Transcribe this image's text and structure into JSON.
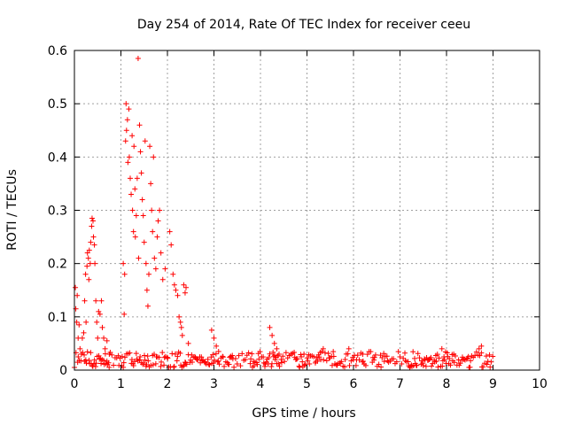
{
  "chart_data": {
    "type": "scatter",
    "title": "Day 254 of 2014, Rate Of TEC Index for receiver ceeu",
    "xlabel": "GPS time / hours",
    "ylabel": "ROTI / TECUs",
    "xlim": [
      0,
      10
    ],
    "ylim": [
      0,
      0.6
    ],
    "xticks": [
      "0",
      "1",
      "2",
      "3",
      "4",
      "5",
      "6",
      "7",
      "8",
      "9",
      "10"
    ],
    "yticks": [
      "0",
      "0.1",
      "0.2",
      "0.3",
      "0.4",
      "0.5",
      "0.6"
    ],
    "grid": true,
    "marker": "+",
    "color": "#ff0000",
    "points": [
      [
        0.02,
        0.155
      ],
      [
        0.03,
        0.115
      ],
      [
        0.05,
        0.09
      ],
      [
        0.06,
        0.14
      ],
      [
        0.08,
        0.06
      ],
      [
        0.1,
        0.085
      ],
      [
        0.12,
        0.04
      ],
      [
        0.15,
        0.03
      ],
      [
        0.17,
        0.06
      ],
      [
        0.2,
        0.07
      ],
      [
        0.22,
        0.13
      ],
      [
        0.24,
        0.18
      ],
      [
        0.25,
        0.09
      ],
      [
        0.27,
        0.195
      ],
      [
        0.28,
        0.22
      ],
      [
        0.3,
        0.21
      ],
      [
        0.31,
        0.17
      ],
      [
        0.32,
        0.225
      ],
      [
        0.34,
        0.2
      ],
      [
        0.35,
        0.24
      ],
      [
        0.37,
        0.27
      ],
      [
        0.38,
        0.285
      ],
      [
        0.4,
        0.28
      ],
      [
        0.41,
        0.25
      ],
      [
        0.43,
        0.235
      ],
      [
        0.44,
        0.2
      ],
      [
        0.46,
        0.13
      ],
      [
        0.48,
        0.09
      ],
      [
        0.5,
        0.06
      ],
      [
        0.52,
        0.11
      ],
      [
        0.55,
        0.105
      ],
      [
        0.58,
        0.13
      ],
      [
        0.6,
        0.08
      ],
      [
        0.63,
        0.06
      ],
      [
        0.66,
        0.04
      ],
      [
        0.7,
        0.055
      ],
      [
        0.75,
        0.03
      ],
      [
        1.05,
        0.2
      ],
      [
        1.07,
        0.105
      ],
      [
        1.08,
        0.18
      ],
      [
        1.1,
        0.43
      ],
      [
        1.11,
        0.5
      ],
      [
        1.12,
        0.45
      ],
      [
        1.14,
        0.47
      ],
      [
        1.15,
        0.39
      ],
      [
        1.17,
        0.49
      ],
      [
        1.18,
        0.4
      ],
      [
        1.2,
        0.36
      ],
      [
        1.22,
        0.33
      ],
      [
        1.24,
        0.44
      ],
      [
        1.25,
        0.3
      ],
      [
        1.27,
        0.26
      ],
      [
        1.28,
        0.42
      ],
      [
        1.3,
        0.34
      ],
      [
        1.31,
        0.25
      ],
      [
        1.33,
        0.29
      ],
      [
        1.35,
        0.36
      ],
      [
        1.37,
        0.585
      ],
      [
        1.38,
        0.21
      ],
      [
        1.4,
        0.46
      ],
      [
        1.42,
        0.41
      ],
      [
        1.44,
        0.37
      ],
      [
        1.46,
        0.32
      ],
      [
        1.48,
        0.29
      ],
      [
        1.5,
        0.24
      ],
      [
        1.52,
        0.43
      ],
      [
        1.54,
        0.2
      ],
      [
        1.56,
        0.15
      ],
      [
        1.58,
        0.12
      ],
      [
        1.6,
        0.18
      ],
      [
        1.62,
        0.42
      ],
      [
        1.64,
        0.35
      ],
      [
        1.66,
        0.3
      ],
      [
        1.68,
        0.26
      ],
      [
        1.7,
        0.4
      ],
      [
        1.72,
        0.21
      ],
      [
        1.75,
        0.19
      ],
      [
        1.78,
        0.25
      ],
      [
        1.8,
        0.28
      ],
      [
        1.83,
        0.3
      ],
      [
        1.86,
        0.22
      ],
      [
        1.9,
        0.17
      ],
      [
        1.95,
        0.19
      ],
      [
        2.05,
        0.26
      ],
      [
        2.08,
        0.235
      ],
      [
        2.12,
        0.18
      ],
      [
        2.15,
        0.16
      ],
      [
        2.18,
        0.15
      ],
      [
        2.22,
        0.14
      ],
      [
        2.25,
        0.1
      ],
      [
        2.28,
        0.09
      ],
      [
        2.3,
        0.08
      ],
      [
        2.32,
        0.065
      ],
      [
        2.35,
        0.16
      ],
      [
        2.38,
        0.145
      ],
      [
        2.4,
        0.155
      ],
      [
        2.45,
        0.05
      ],
      [
        2.95,
        0.075
      ],
      [
        3.0,
        0.06
      ],
      [
        3.05,
        0.045
      ],
      [
        3.1,
        0.035
      ],
      [
        4.2,
        0.08
      ],
      [
        4.25,
        0.065
      ],
      [
        4.3,
        0.05
      ],
      [
        4.35,
        0.04
      ],
      [
        4.4,
        0.03
      ],
      [
        5.35,
        0.04
      ],
      [
        5.9,
        0.04
      ],
      [
        6.2,
        0.03
      ],
      [
        7.9,
        0.04
      ],
      [
        8.7,
        0.04
      ],
      [
        8.75,
        0.045
      ]
    ],
    "baseline_band": {
      "x_range": [
        0,
        9
      ],
      "y_range": [
        0.005,
        0.035
      ]
    }
  }
}
